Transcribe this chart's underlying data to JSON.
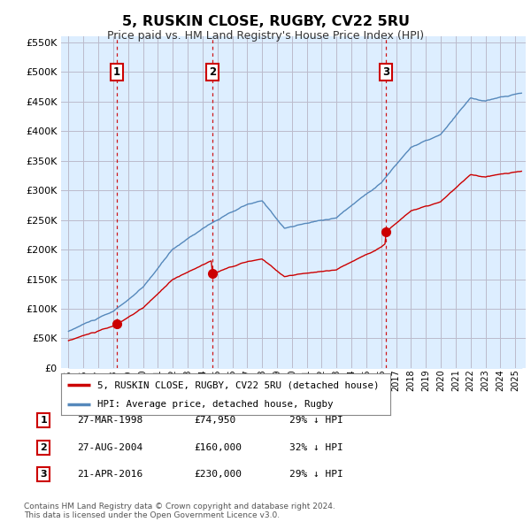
{
  "title": "5, RUSKIN CLOSE, RUGBY, CV22 5RU",
  "subtitle": "Price paid vs. HM Land Registry's House Price Index (HPI)",
  "sale_dates_num": [
    1998.23,
    2004.65,
    2016.31
  ],
  "sale_prices": [
    74950,
    160000,
    230000
  ],
  "sale_labels": [
    "1",
    "2",
    "3"
  ],
  "sale_date_strs": [
    "27-MAR-1998",
    "27-AUG-2004",
    "21-APR-2016"
  ],
  "sale_price_strs": [
    "£74,950",
    "£160,000",
    "£230,000"
  ],
  "sale_hpi_strs": [
    "29% ↓ HPI",
    "32% ↓ HPI",
    "29% ↓ HPI"
  ],
  "legend_line1": "5, RUSKIN CLOSE, RUGBY, CV22 5RU (detached house)",
  "legend_line2": "HPI: Average price, detached house, Rugby",
  "footer1": "Contains HM Land Registry data © Crown copyright and database right 2024.",
  "footer2": "This data is licensed under the Open Government Licence v3.0.",
  "red_color": "#cc0000",
  "blue_color": "#5588bb",
  "fill_color": "#ddeeff",
  "bg_color": "#ffffff",
  "grid_color": "#cccccc",
  "ylim": [
    0,
    560000
  ],
  "yticks": [
    0,
    50000,
    100000,
    150000,
    200000,
    250000,
    300000,
    350000,
    400000,
    450000,
    500000,
    550000
  ],
  "xlabel_years": [
    1995,
    1996,
    1997,
    1998,
    1999,
    2000,
    2001,
    2002,
    2003,
    2004,
    2005,
    2006,
    2007,
    2008,
    2009,
    2010,
    2011,
    2012,
    2013,
    2014,
    2015,
    2016,
    2017,
    2018,
    2019,
    2020,
    2021,
    2022,
    2023,
    2024,
    2025
  ],
  "xlim": [
    1994.5,
    2025.7
  ]
}
